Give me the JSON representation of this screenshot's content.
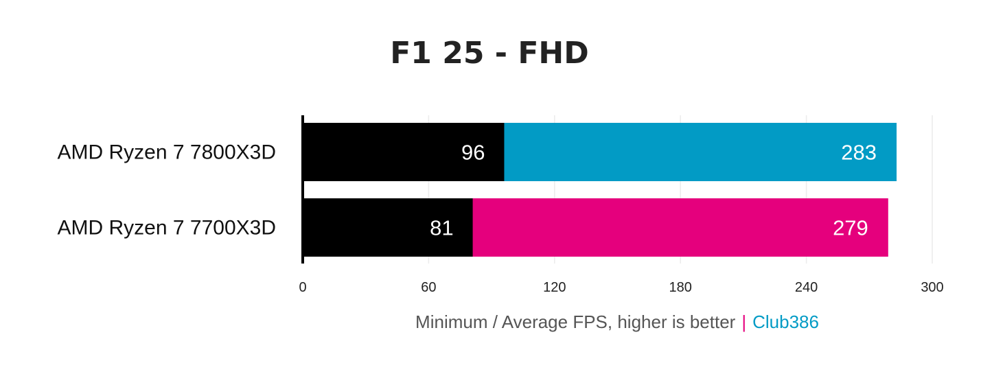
{
  "chart_data": {
    "type": "bar",
    "orientation": "horizontal",
    "stacking": "overlay",
    "title": "F1 25 - FHD",
    "categories": [
      "AMD Ryzen 7 7800X3D",
      "AMD Ryzen 7 7700X3D"
    ],
    "series": [
      {
        "name": "Minimum",
        "values": [
          96,
          81
        ],
        "colors": [
          "#000000",
          "#000000"
        ]
      },
      {
        "name": "Average",
        "values": [
          283,
          279
        ],
        "colors": [
          "#029bc5",
          "#e5007d"
        ]
      }
    ],
    "xlim": [
      0,
      300
    ],
    "xticks": [
      0,
      60,
      120,
      180,
      240,
      300
    ],
    "grid": true,
    "xlabel": {
      "main": "Minimum / Average FPS, higher is better",
      "separator": "|",
      "brand": "Club386"
    },
    "colors": {
      "separator": "#e5007d",
      "brand": "#029bc5",
      "text": "#555555"
    }
  }
}
